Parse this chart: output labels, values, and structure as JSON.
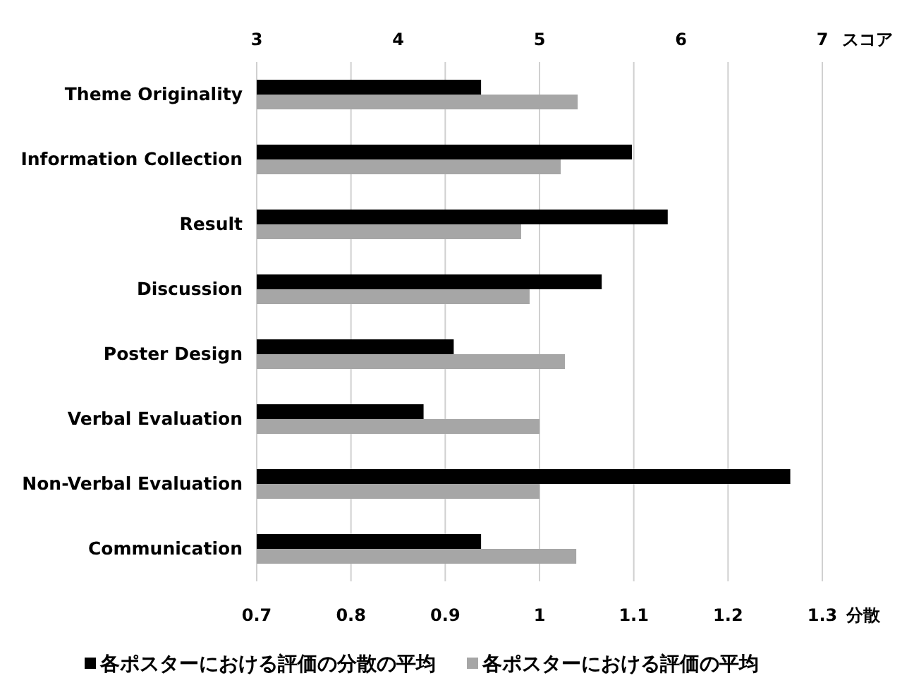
{
  "chart_data": {
    "type": "bar",
    "orientation": "horizontal",
    "categories": [
      "Theme Originality",
      "Information Collection",
      "Result",
      "Discussion",
      "Poster Design",
      "Verbal Evaluation",
      "Non-Verbal Evaluation",
      "Communication"
    ],
    "series": [
      {
        "name": "各ポスターにおける評価の分散の平均",
        "color": "#000000",
        "values": [
          0.938,
          1.098,
          1.136,
          1.066,
          0.909,
          0.877,
          1.266,
          0.938
        ]
      },
      {
        "name": "各ポスターにおける評価の平均",
        "color": "#a6a6a6",
        "axis": "x2",
        "values": [
          5.27,
          5.15,
          4.87,
          4.93,
          5.18,
          5.0,
          5.0,
          5.26
        ]
      }
    ],
    "xlim": [
      0.7,
      1.3
    ],
    "xticks": [
      0.7,
      0.8,
      0.9,
      1,
      1.1,
      1.2,
      1.3
    ],
    "xlabel": "分散",
    "x2lim": [
      3,
      7
    ],
    "x2ticks": [
      3,
      4,
      5,
      6,
      7
    ],
    "x2label": "スコア",
    "grid": "x",
    "legend": "bottom"
  }
}
